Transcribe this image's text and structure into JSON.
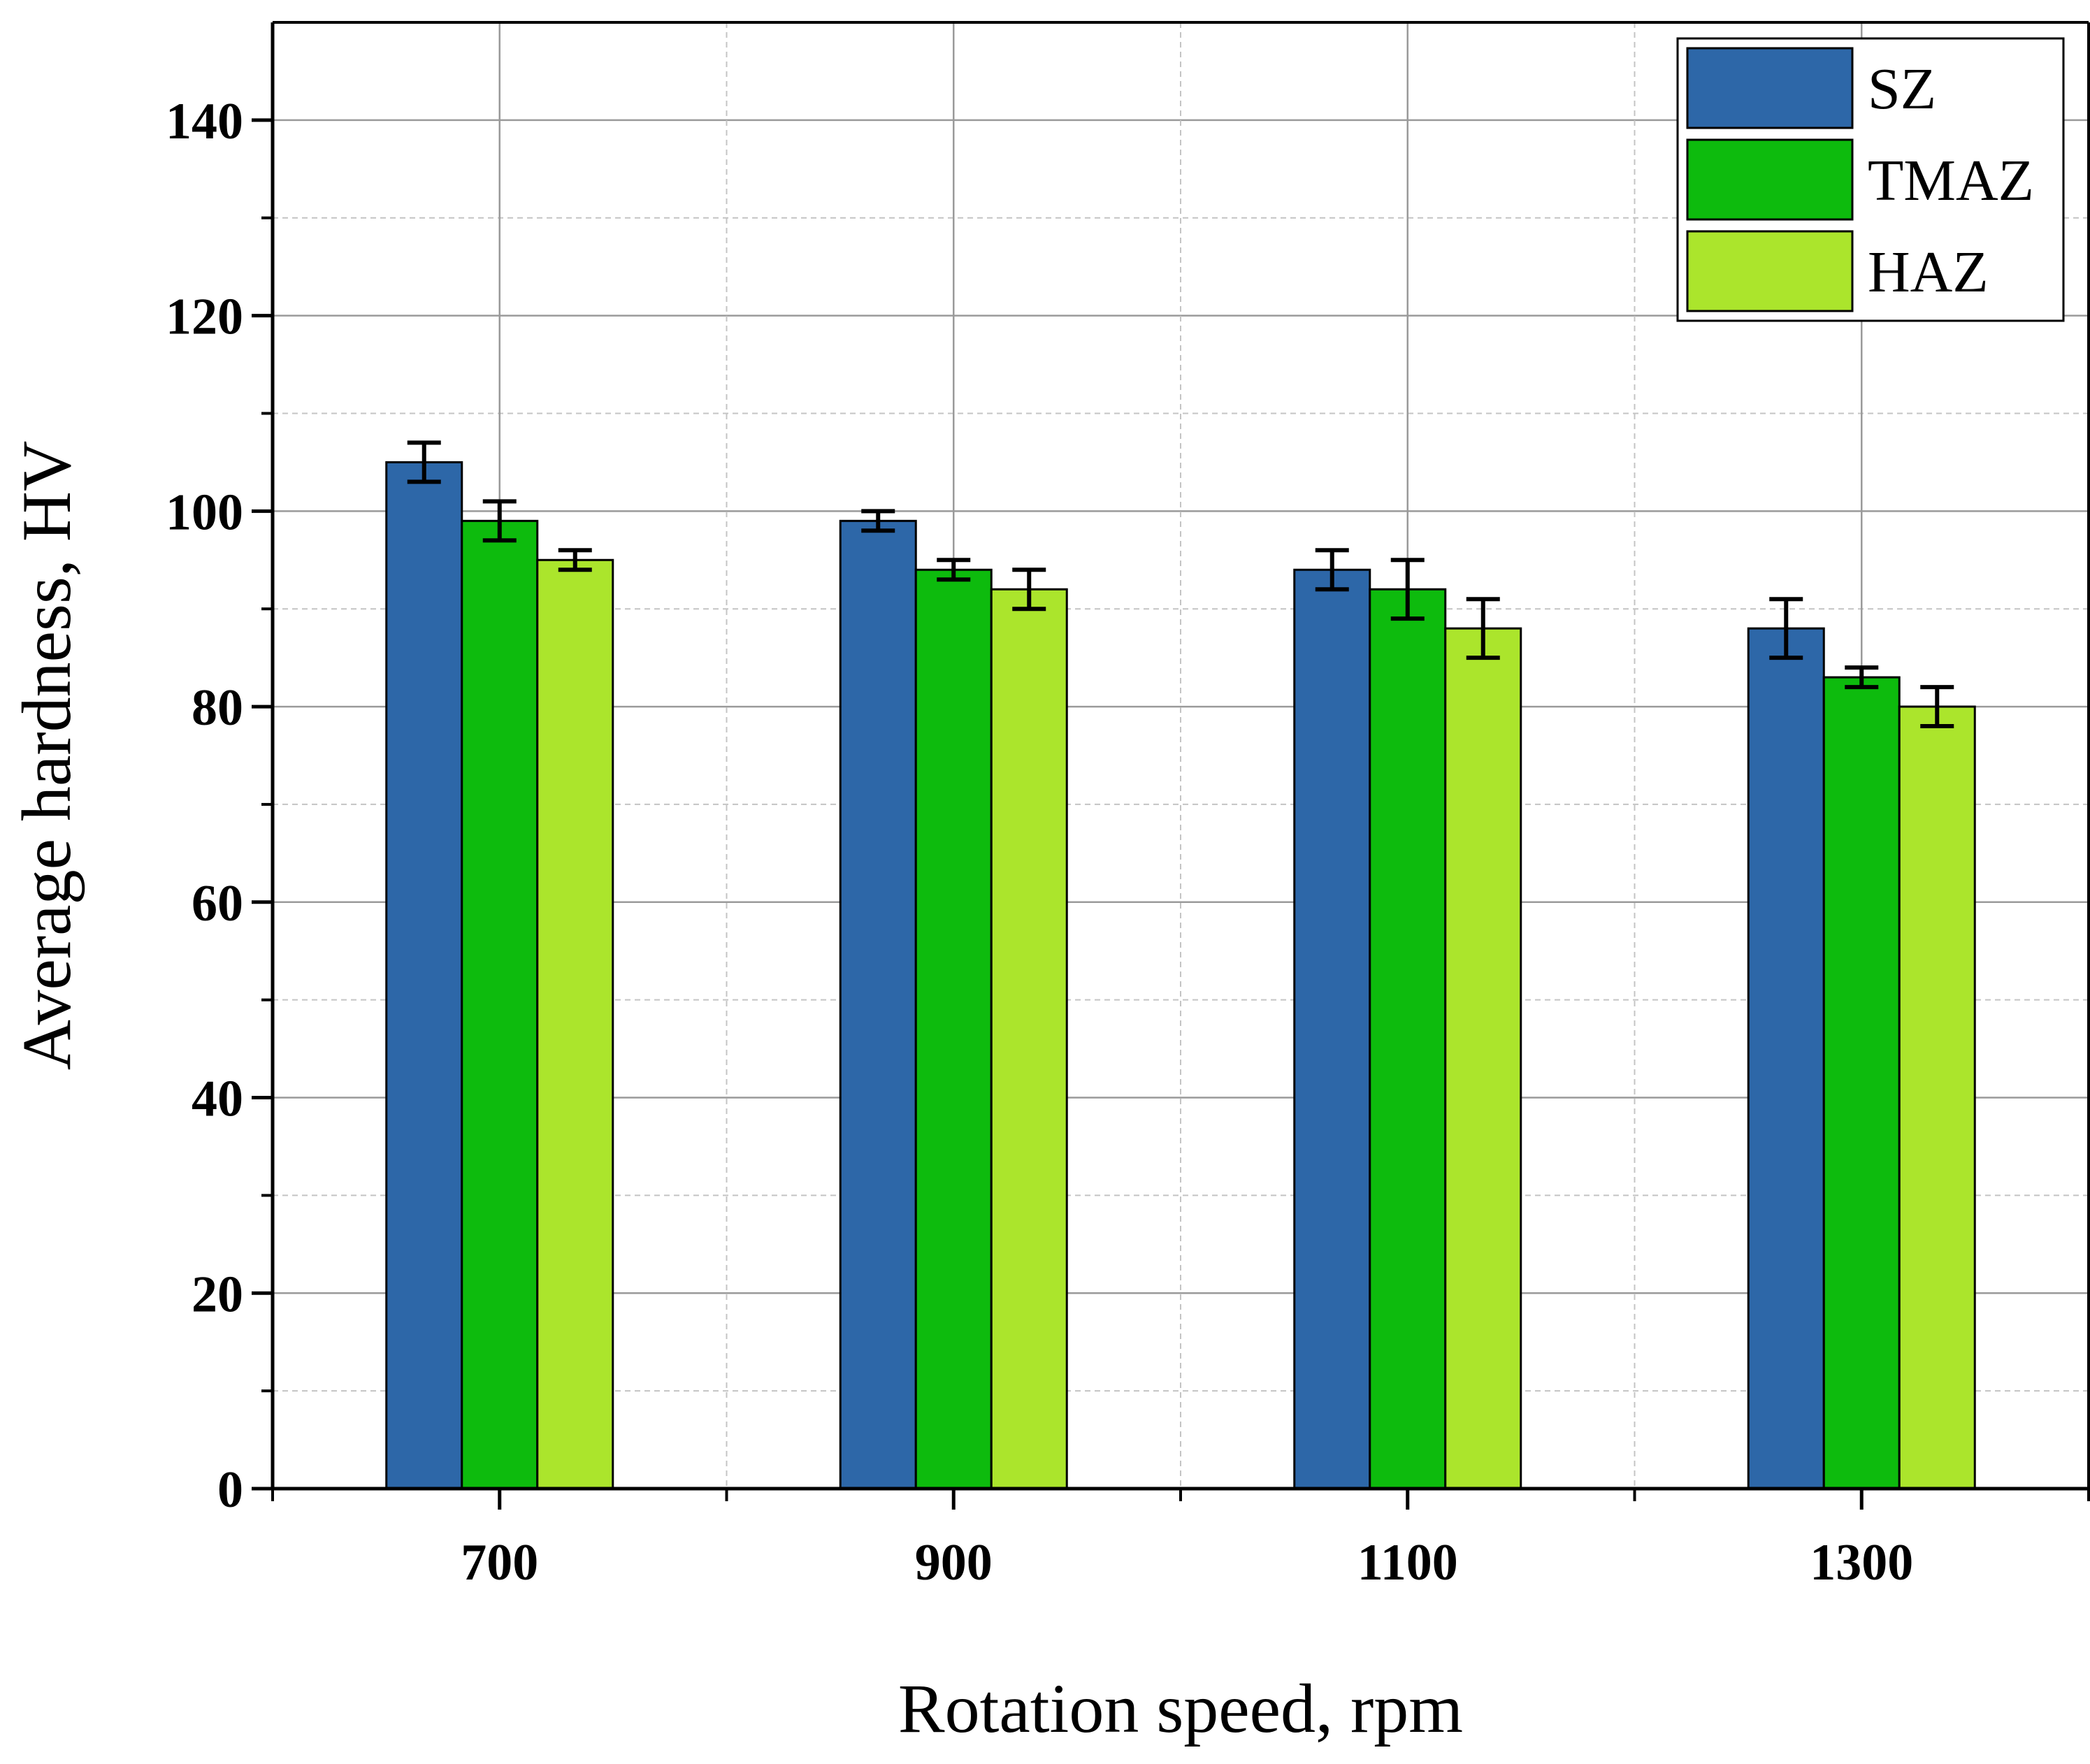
{
  "chart_data": {
    "type": "bar",
    "title": "",
    "xlabel": "Rotation speed, rpm",
    "ylabel": "Average hardness, HV",
    "categories": [
      "700",
      "900",
      "1100",
      "1300"
    ],
    "ylim": [
      0,
      150
    ],
    "yticks": [
      0,
      20,
      40,
      60,
      80,
      100,
      120,
      140
    ],
    "ytick_labels": [
      "0",
      "20",
      "40",
      "60",
      "80",
      "100",
      "120",
      "140"
    ],
    "grid": true,
    "legend_position": "top-right",
    "series": [
      {
        "name": "SZ",
        "color": "#2d67a8",
        "values": [
          105,
          99,
          94,
          88
        ],
        "errors": [
          2,
          1,
          2,
          3
        ]
      },
      {
        "name": "TMAZ",
        "color": "#0dbb0d",
        "values": [
          99,
          94,
          92,
          83
        ],
        "errors": [
          2,
          1,
          3,
          1
        ]
      },
      {
        "name": "HAZ",
        "color": "#abe52c",
        "values": [
          95,
          92,
          88,
          80
        ],
        "errors": [
          1,
          2,
          3,
          2
        ]
      }
    ]
  }
}
